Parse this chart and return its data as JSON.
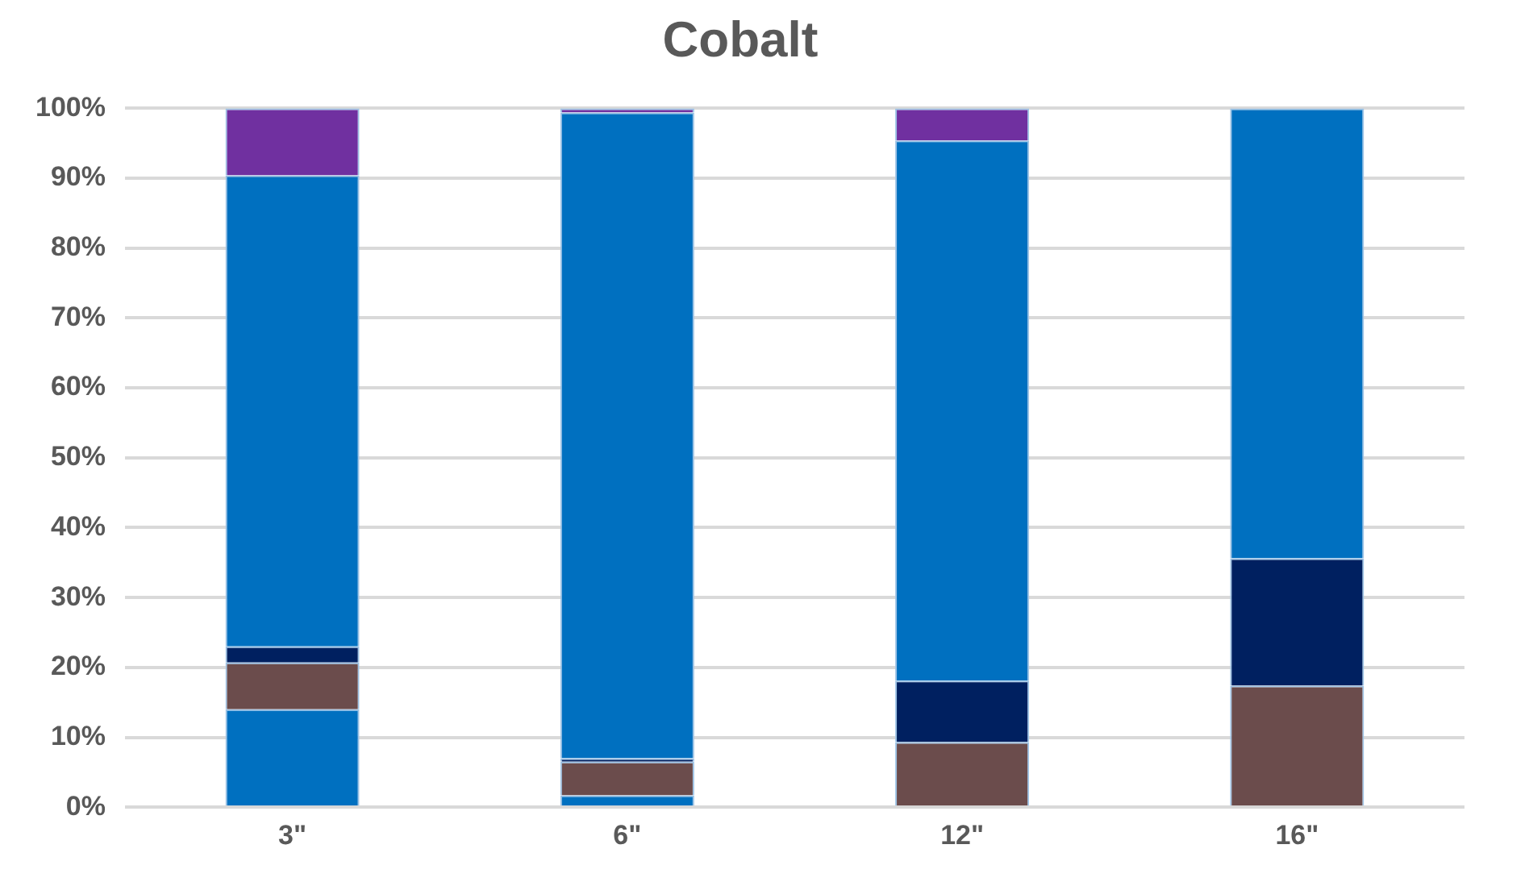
{
  "chart_data": {
    "type": "bar",
    "title": "Cobalt",
    "categories": [
      "3\"",
      "6\"",
      "12\"",
      "16\""
    ],
    "stacked": true,
    "series": [
      {
        "color": "#0070c0",
        "values": [
          14.0,
          1.7,
          0,
          0
        ]
      },
      {
        "color": "#6b4c4c",
        "values": [
          6.7,
          4.8,
          9.3,
          17.4
        ]
      },
      {
        "color": "#002060",
        "values": [
          2.3,
          0.5,
          8.8,
          18.2
        ]
      },
      {
        "color": "#0070c0",
        "values": [
          67.4,
          92.4,
          77.3,
          64.4
        ]
      },
      {
        "color": "#7030a0",
        "values": [
          9.6,
          0.6,
          4.6,
          0
        ]
      }
    ],
    "ylim": [
      0,
      100
    ],
    "yticks": [
      {
        "value": 0,
        "label": "0%"
      },
      {
        "value": 10,
        "label": "10%"
      },
      {
        "value": 20,
        "label": "20%"
      },
      {
        "value": 30,
        "label": "30%"
      },
      {
        "value": 40,
        "label": "40%"
      },
      {
        "value": 50,
        "label": "50%"
      },
      {
        "value": 60,
        "label": "60%"
      },
      {
        "value": 70,
        "label": "70%"
      },
      {
        "value": 80,
        "label": "80%"
      },
      {
        "value": 90,
        "label": "90%"
      },
      {
        "value": 100,
        "label": "100%"
      }
    ],
    "grid": "y",
    "legend": false
  }
}
